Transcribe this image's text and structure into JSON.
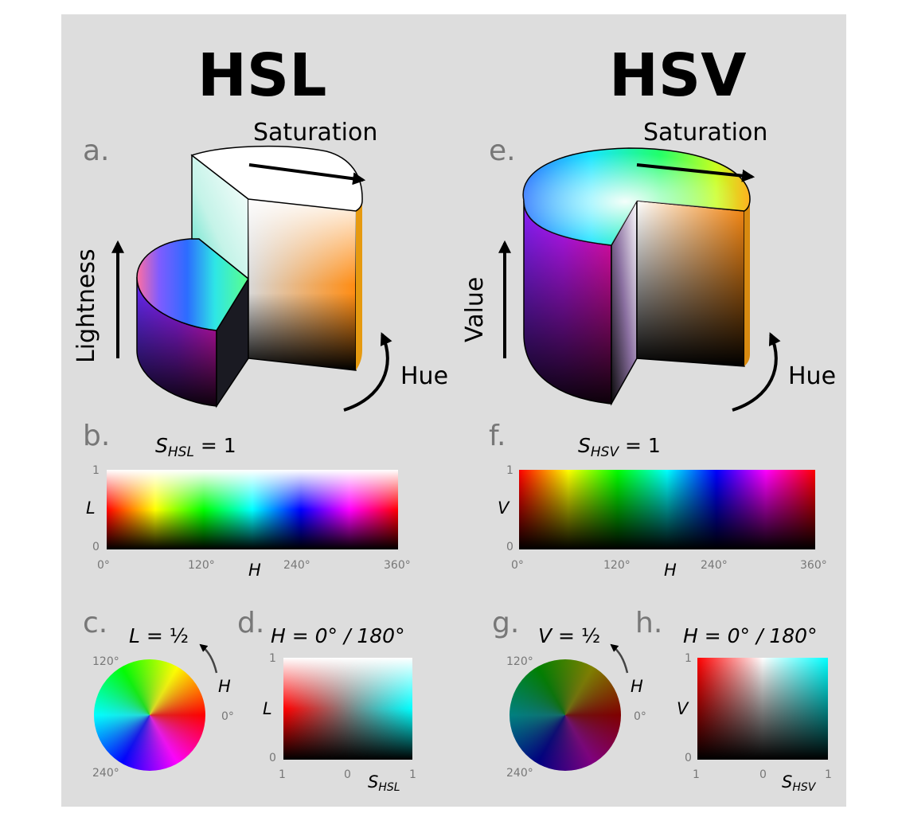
{
  "colors": {
    "background": "#dddddd",
    "page": "#ffffff",
    "title": "#000000",
    "letters": "#777777",
    "ticks": "#777777"
  },
  "hsl": {
    "title": "HSL",
    "a": {
      "letter": "a.",
      "saturation": "Saturation",
      "lightness": "Lightness",
      "hue": "Hue"
    },
    "b": {
      "letter": "b.",
      "eq_var": "S",
      "eq_sub": "HSL",
      "eq_rest": " = 1",
      "y_label": "L",
      "y_top": "1",
      "y_bottom": "0",
      "x_label": "H",
      "x_ticks": [
        "0°",
        "120°",
        "240°",
        "360°"
      ]
    },
    "c": {
      "letter": "c.",
      "eq_var": "L",
      "eq_rest": " = ½",
      "tick_120": "120°",
      "tick_240": "240°",
      "tick_0": "0°",
      "arrow_label": "H"
    },
    "d": {
      "letter": "d.",
      "eq": "H = 0° / 180°",
      "y_label": "L",
      "y_top": "1",
      "y_bottom": "0",
      "x_left": "1",
      "x_mid": "0",
      "x_right": "1",
      "x_var": "S",
      "x_sub": "HSL"
    }
  },
  "hsv": {
    "title": "HSV",
    "e": {
      "letter": "e.",
      "saturation": "Saturation",
      "value": "Value",
      "hue": "Hue"
    },
    "f": {
      "letter": "f.",
      "eq_var": "S",
      "eq_sub": "HSV",
      "eq_rest": " = 1",
      "y_label": "V",
      "y_top": "1",
      "y_bottom": "0",
      "x_label": "H",
      "x_ticks": [
        "0°",
        "120°",
        "240°",
        "360°"
      ]
    },
    "g": {
      "letter": "g.",
      "eq_var": "V",
      "eq_rest": " = ½",
      "tick_120": "120°",
      "tick_240": "240°",
      "tick_0": "0°",
      "arrow_label": "H"
    },
    "h": {
      "letter": "h.",
      "eq": "H = 0° / 180°",
      "y_label": "V",
      "y_top": "1",
      "y_bottom": "0",
      "x_left": "1",
      "x_mid": "0",
      "x_right": "1",
      "x_var": "S",
      "x_sub": "HSV"
    }
  }
}
